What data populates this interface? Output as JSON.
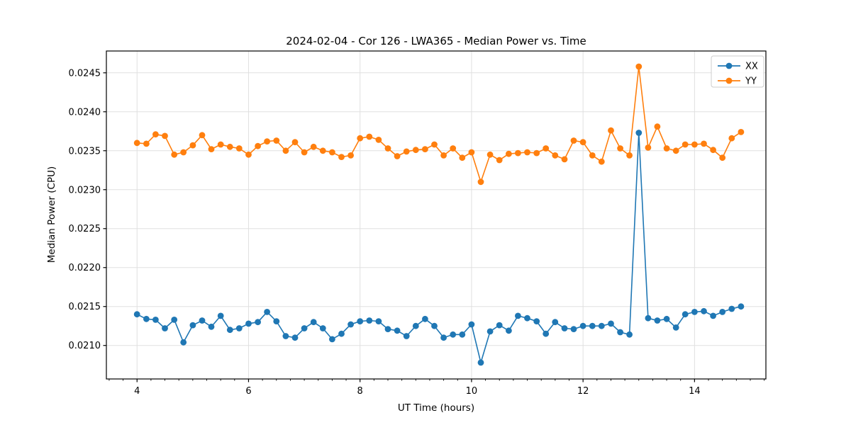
{
  "colors": {
    "xx_series": "#1f77b4",
    "yy_series": "#ff7f0e",
    "grid": "#e0e0e0",
    "spine": "#000000",
    "legend_border": "#cccccc",
    "background": "#ffffff"
  },
  "legend": {
    "entries": [
      {
        "label": "XX",
        "color": "#1f77b4"
      },
      {
        "label": "YY",
        "color": "#ff7f0e"
      }
    ]
  },
  "chart_data": {
    "type": "line",
    "title": "2024-02-04 - Cor 126 - LWA365 - Median Power vs. Time",
    "xlabel": "UT Time (hours)",
    "ylabel": "Median Power (CPU)",
    "xlim": [
      3.45,
      15.28
    ],
    "ylim": [
      0.02057,
      0.02478
    ],
    "xticks": [
      4,
      6,
      8,
      10,
      12,
      14
    ],
    "yticks": [
      0.021,
      0.0215,
      0.022,
      0.0225,
      0.023,
      0.0235,
      0.024,
      0.0245
    ],
    "x_minor_step": 0.25,
    "grid": true,
    "legend_position": "upper right",
    "marker": "o",
    "x": [
      4.0,
      4.167,
      4.333,
      4.5,
      4.667,
      4.833,
      5.0,
      5.167,
      5.333,
      5.5,
      5.667,
      5.833,
      6.0,
      6.167,
      6.333,
      6.5,
      6.667,
      6.833,
      7.0,
      7.167,
      7.333,
      7.5,
      7.667,
      7.833,
      8.0,
      8.167,
      8.333,
      8.5,
      8.667,
      8.833,
      9.0,
      9.167,
      9.333,
      9.5,
      9.667,
      9.833,
      10.0,
      10.167,
      10.333,
      10.5,
      10.667,
      10.833,
      11.0,
      11.167,
      11.333,
      11.5,
      11.667,
      11.833,
      12.0,
      12.167,
      12.333,
      12.5,
      12.667,
      12.833,
      13.0,
      13.167,
      13.333,
      13.5,
      13.667,
      13.833,
      14.0,
      14.167,
      14.333,
      14.5,
      14.667,
      14.833
    ],
    "series": [
      {
        "name": "XX",
        "color": "#1f77b4",
        "values": [
          0.0214,
          0.02134,
          0.02133,
          0.02122,
          0.02133,
          0.02104,
          0.02126,
          0.02132,
          0.02124,
          0.02138,
          0.0212,
          0.02122,
          0.02128,
          0.0213,
          0.02143,
          0.02131,
          0.02112,
          0.0211,
          0.02122,
          0.0213,
          0.02122,
          0.02108,
          0.02115,
          0.02127,
          0.02131,
          0.02132,
          0.02131,
          0.02121,
          0.02119,
          0.02112,
          0.02125,
          0.02134,
          0.02125,
          0.0211,
          0.02114,
          0.02114,
          0.02127,
          0.02078,
          0.02118,
          0.02126,
          0.02119,
          0.02138,
          0.02135,
          0.02131,
          0.02115,
          0.0213,
          0.02122,
          0.02121,
          0.02125,
          0.02125,
          0.02125,
          0.02128,
          0.02117,
          0.02114,
          0.02373,
          0.02135,
          0.02132,
          0.02134,
          0.02123,
          0.0214,
          0.02143,
          0.02144,
          0.02138,
          0.02143,
          0.02147,
          0.0215
        ]
      },
      {
        "name": "YY",
        "color": "#ff7f0e",
        "values": [
          0.0236,
          0.02359,
          0.02371,
          0.02369,
          0.02345,
          0.02348,
          0.02357,
          0.0237,
          0.02352,
          0.02358,
          0.02355,
          0.02353,
          0.02345,
          0.02356,
          0.02362,
          0.02363,
          0.0235,
          0.02361,
          0.02348,
          0.02355,
          0.0235,
          0.02348,
          0.02342,
          0.02344,
          0.02366,
          0.02368,
          0.02364,
          0.02353,
          0.02343,
          0.02349,
          0.02351,
          0.02352,
          0.02358,
          0.02344,
          0.02353,
          0.02341,
          0.02348,
          0.0231,
          0.02345,
          0.02338,
          0.02346,
          0.02347,
          0.02348,
          0.02347,
          0.02353,
          0.02344,
          0.02339,
          0.02363,
          0.02361,
          0.02344,
          0.02336,
          0.02376,
          0.02353,
          0.02344,
          0.02458,
          0.02354,
          0.02381,
          0.02353,
          0.0235,
          0.02358,
          0.02358,
          0.02359,
          0.02351,
          0.02341,
          0.02366,
          0.02374
        ]
      }
    ]
  }
}
